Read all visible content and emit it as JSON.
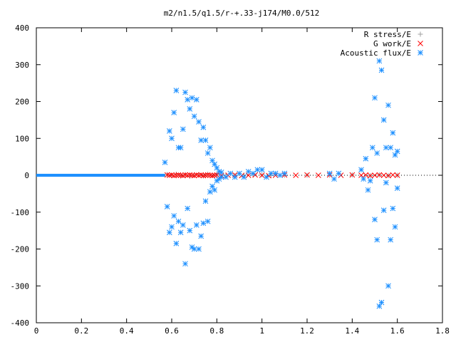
{
  "chart_data": {
    "type": "scatter",
    "title": "m2/n1.5/q1.5/r-+.33-j174/M0.0/512",
    "xlabel": "",
    "ylabel": "",
    "xlim": [
      0,
      1.8
    ],
    "ylim": [
      -400,
      400
    ],
    "x_ticks": [
      "0",
      "0.2",
      "0.4",
      "0.6",
      "0.8",
      "1",
      "1.2",
      "1.4",
      "1.6",
      "1.8"
    ],
    "y_ticks": [
      "400",
      "300",
      "200",
      "100",
      "0",
      "-100",
      "-200",
      "-300",
      "-400"
    ],
    "grid": false,
    "legend_position": "top-right",
    "series": [
      {
        "name": "R stress/E",
        "marker": "plus",
        "color": "#a0a0a0",
        "x": [
          0.58,
          0.6,
          0.62,
          0.64,
          0.66,
          0.68,
          0.7,
          0.72,
          0.74,
          0.76,
          0.78,
          0.8,
          0.84,
          0.88,
          0.92,
          0.96,
          1.0,
          1.04,
          1.1,
          1.2,
          1.3,
          1.4,
          1.48,
          1.52,
          1.56,
          1.6
        ],
        "y": [
          2,
          -1,
          3,
          -2,
          2,
          -3,
          1,
          2,
          -2,
          3,
          -1,
          2,
          1,
          -1,
          1,
          0,
          1,
          -1,
          0,
          0,
          0,
          1,
          -1,
          1,
          -1,
          0
        ]
      },
      {
        "name": "G work/E",
        "marker": "cross",
        "color": "#ff0000",
        "x": [
          0.58,
          0.59,
          0.6,
          0.61,
          0.62,
          0.63,
          0.64,
          0.65,
          0.66,
          0.67,
          0.68,
          0.69,
          0.7,
          0.71,
          0.72,
          0.73,
          0.74,
          0.75,
          0.76,
          0.77,
          0.78,
          0.79,
          0.8,
          0.82,
          0.85,
          0.88,
          0.91,
          0.94,
          0.97,
          1.0,
          1.03,
          1.06,
          1.1,
          1.15,
          1.2,
          1.25,
          1.3,
          1.35,
          1.4,
          1.44,
          1.46,
          1.48,
          1.5,
          1.52,
          1.54,
          1.56,
          1.58,
          1.6
        ],
        "y": [
          1,
          0,
          1,
          -1,
          0,
          1,
          0,
          -1,
          1,
          0,
          1,
          0,
          -1,
          1,
          0,
          1,
          -1,
          0,
          1,
          0,
          -1,
          0,
          1,
          -1,
          0,
          1,
          -1,
          0,
          1,
          0,
          -1,
          0,
          1,
          0,
          1,
          0,
          1,
          0,
          1,
          0,
          1,
          -1,
          0,
          1,
          0,
          -1,
          1,
          0
        ]
      },
      {
        "name": "Acoustic flux/E",
        "marker": "star",
        "color": "#1e90ff",
        "x": [
          0.57,
          0.58,
          0.59,
          0.59,
          0.6,
          0.6,
          0.61,
          0.61,
          0.62,
          0.62,
          0.63,
          0.63,
          0.64,
          0.64,
          0.65,
          0.65,
          0.66,
          0.66,
          0.67,
          0.67,
          0.68,
          0.68,
          0.69,
          0.69,
          0.7,
          0.7,
          0.71,
          0.71,
          0.72,
          0.72,
          0.73,
          0.73,
          0.74,
          0.74,
          0.75,
          0.75,
          0.76,
          0.76,
          0.77,
          0.77,
          0.78,
          0.78,
          0.79,
          0.79,
          0.8,
          0.8,
          0.81,
          0.81,
          0.82,
          0.82,
          0.84,
          0.86,
          0.88,
          0.9,
          0.92,
          0.94,
          0.96,
          0.98,
          1.0,
          1.02,
          1.04,
          1.06,
          1.08,
          1.1,
          1.3,
          1.32,
          1.34,
          1.44,
          1.45,
          1.46,
          1.47,
          1.48,
          1.49,
          1.5,
          1.5,
          1.51,
          1.51,
          1.52,
          1.52,
          1.53,
          1.53,
          1.54,
          1.54,
          1.55,
          1.55,
          1.56,
          1.56,
          1.57,
          1.57,
          1.58,
          1.58,
          1.59,
          1.59,
          1.6,
          1.6
        ],
        "y": [
          35,
          -85,
          120,
          -155,
          100,
          -140,
          170,
          -110,
          230,
          -185,
          75,
          -125,
          75,
          -155,
          125,
          -135,
          225,
          -240,
          205,
          -90,
          180,
          -150,
          210,
          -195,
          160,
          -200,
          205,
          -135,
          145,
          -200,
          95,
          -165,
          130,
          -130,
          95,
          -70,
          60,
          -125,
          75,
          -45,
          40,
          -30,
          30,
          -40,
          20,
          -15,
          10,
          -10,
          8,
          -5,
          -5,
          5,
          -5,
          5,
          -5,
          10,
          5,
          15,
          15,
          -5,
          5,
          5,
          0,
          5,
          5,
          -10,
          5,
          15,
          -10,
          45,
          -40,
          -15,
          75,
          -120,
          210,
          -175,
          60,
          310,
          -355,
          285,
          -345,
          150,
          -95,
          75,
          -20,
          190,
          -300,
          75,
          -175,
          115,
          -90,
          55,
          -140,
          65,
          -35
        ]
      }
    ]
  }
}
